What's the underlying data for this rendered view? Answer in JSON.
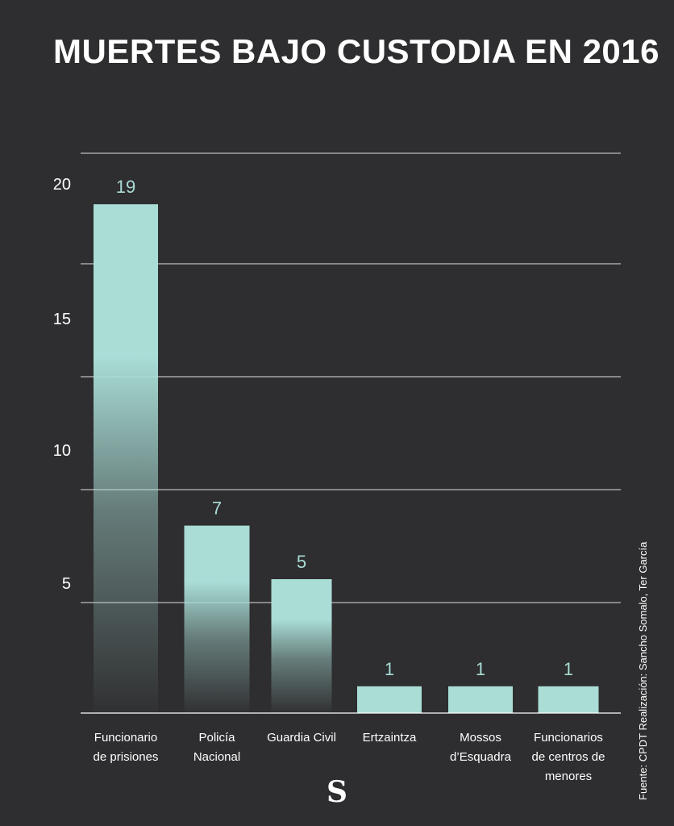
{
  "title": "MUERTES BAJO CUSTODIA EN 2016",
  "source": "Fuente: CPDT  Realización: Sancho Somalo, Ter García",
  "logo": "S",
  "colors": {
    "background": "#2e2d2f",
    "bar": "#a9ddd6",
    "grid": "#ffffff",
    "text": "#ffffff"
  },
  "chart_data": {
    "type": "bar",
    "title": "MUERTES BAJO CUSTODIA EN 2016",
    "categories": [
      [
        "Funcionario",
        "de prisiones"
      ],
      [
        "Policía",
        "Nacional"
      ],
      [
        "Guardia Civil"
      ],
      [
        "Ertzaintza"
      ],
      [
        "Mossos",
        "d’Esquadra"
      ],
      [
        "Funcionarios",
        "de centros de",
        "menores"
      ]
    ],
    "values": [
      19,
      7,
      5,
      1,
      1,
      1
    ],
    "yticks": [
      5,
      10,
      15,
      20
    ],
    "ylim": [
      0,
      21
    ],
    "grid": true,
    "legend": "none",
    "xlabel": "",
    "ylabel": ""
  }
}
